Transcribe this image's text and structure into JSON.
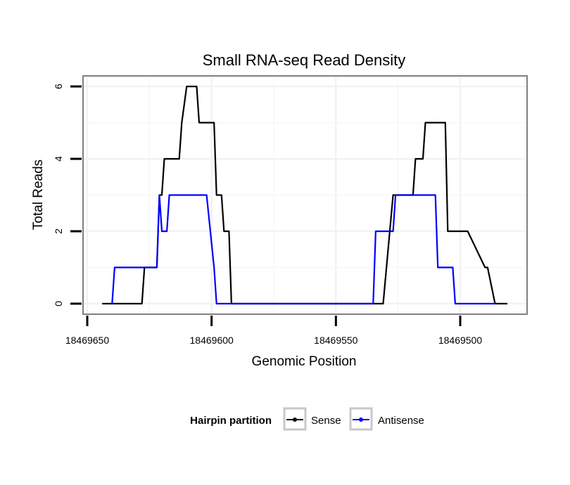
{
  "chart_data": {
    "type": "line",
    "title": "Small RNA-seq Read Density",
    "xlabel": "Genomic Position",
    "ylabel": "Total Reads",
    "x_reversed": true,
    "xlim": [
      18469650,
      18469480
    ],
    "ylim": [
      0,
      6
    ],
    "x_ticks": [
      18469650,
      18469600,
      18469550,
      18469500
    ],
    "x_tick_labels": [
      "18469650",
      "18469600",
      "18469550",
      "18469500"
    ],
    "y_ticks": [
      0,
      2,
      4,
      6
    ],
    "y_tick_labels": [
      "0",
      "2",
      "4",
      "6"
    ],
    "grid": true,
    "legend": {
      "title": "Hairpin partition",
      "position": "bottom"
    },
    "series": [
      {
        "name": "Sense",
        "color": "#000000",
        "x": [
          18469644,
          18469628,
          18469627,
          18469622,
          18469621,
          18469620,
          18469619,
          18469618,
          18469617,
          18469613,
          18469612,
          18469610,
          18469609,
          18469606,
          18469605,
          18469599,
          18469598,
          18469596,
          18469595,
          18469593,
          18469592,
          18469589,
          18469588,
          18469573,
          18469572,
          18469571,
          18469570,
          18469560,
          18469546,
          18469531,
          18469527,
          18469526,
          18469519,
          18469518,
          18469515,
          18469514,
          18469512,
          18469511,
          18469506,
          18469505,
          18469498,
          18469497,
          18469490,
          18469489,
          18469486,
          18469485,
          18469481
        ],
        "y": [
          0,
          0,
          1,
          1,
          3,
          3,
          4,
          4,
          4,
          4,
          5,
          6,
          6,
          6,
          5,
          5,
          3,
          3,
          2,
          2,
          0,
          0,
          0,
          0,
          0,
          0,
          0,
          0,
          0,
          0,
          3,
          3,
          3,
          4,
          4,
          5,
          5,
          5,
          5,
          2,
          2,
          2,
          1,
          1,
          0,
          0,
          0
        ]
      },
      {
        "name": "Antisense",
        "color": "#0000ff",
        "x": [
          18469640,
          18469639,
          18469622,
          18469621,
          18469620,
          18469618,
          18469617,
          18469602,
          18469599,
          18469598,
          18469591,
          18469590,
          18469580,
          18469570,
          18469560,
          18469550,
          18469540,
          18469535,
          18469534,
          18469527,
          18469526,
          18469517,
          18469510,
          18469509,
          18469503,
          18469502,
          18469496,
          18469495,
          18469488,
          18469487,
          18469486
        ],
        "y": [
          0,
          1,
          1,
          3,
          2,
          2,
          3,
          3,
          1,
          0,
          0,
          0,
          0,
          0,
          0,
          0,
          0,
          0,
          2,
          2,
          3,
          3,
          3,
          1,
          1,
          0,
          0,
          0,
          0,
          0,
          0
        ]
      }
    ]
  }
}
